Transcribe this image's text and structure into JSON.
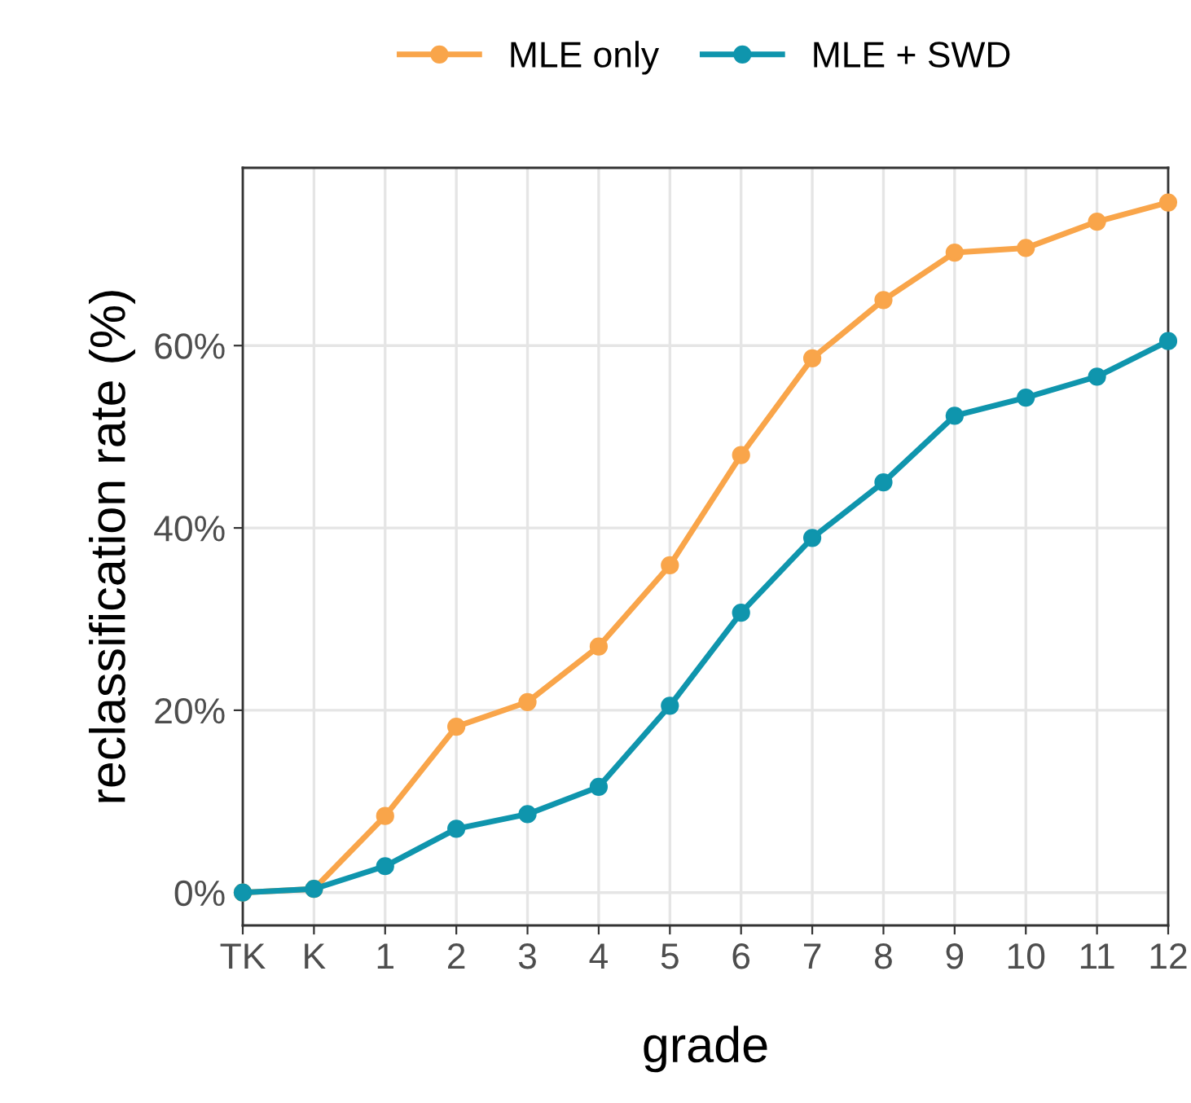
{
  "chart_data": {
    "type": "line",
    "xlabel": "grade",
    "ylabel": "reclassification rate (%)",
    "categories": [
      "TK",
      "K",
      "1",
      "2",
      "3",
      "4",
      "5",
      "6",
      "7",
      "8",
      "9",
      "10",
      "11",
      "12"
    ],
    "series": [
      {
        "name": "MLE only",
        "color": "#f9a54a",
        "values": [
          0,
          0.4,
          8.4,
          18.2,
          20.9,
          27.0,
          35.9,
          48.0,
          58.6,
          65.0,
          70.2,
          70.7,
          73.6,
          75.7
        ]
      },
      {
        "name": "MLE + SWD",
        "color": "#0f95ad",
        "values": [
          0,
          0.4,
          2.9,
          7.0,
          8.6,
          11.6,
          20.5,
          30.7,
          38.9,
          45.0,
          52.3,
          54.3,
          56.6,
          60.5
        ]
      }
    ],
    "ylim": [
      -3.6,
      79.5
    ],
    "yticks": [
      {
        "value": 0,
        "label": "0%"
      },
      {
        "value": 20,
        "label": "20%"
      },
      {
        "value": 40,
        "label": "40%"
      },
      {
        "value": 60,
        "label": "60%"
      }
    ],
    "grid": true,
    "legend": "top",
    "marker": "circle",
    "line_style": "solid"
  }
}
